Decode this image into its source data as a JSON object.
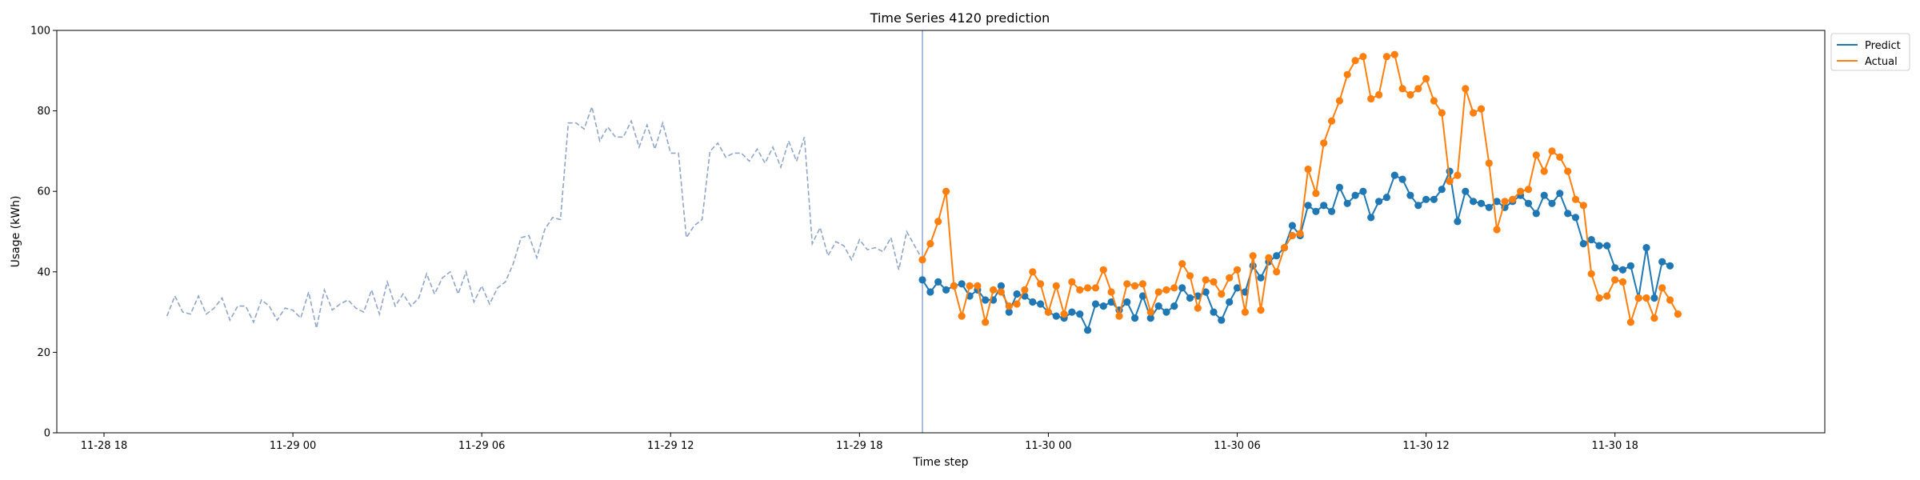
{
  "chart_data": {
    "type": "line",
    "title": "Time Series 4120 prediction",
    "xlabel": "Time step",
    "ylabel": "Usage (kWh)",
    "ylim": [
      0,
      100
    ],
    "xlim": [
      "2024-11-28 16:30",
      "2024-12-01 00:40"
    ],
    "x_ticks": [
      "11-28 18",
      "11-29 00",
      "11-29 06",
      "11-29 12",
      "11-29 18",
      "11-30 00",
      "11-30 06",
      "11-30 12",
      "11-30 18"
    ],
    "y_ticks": [
      0,
      20,
      40,
      60,
      80,
      100
    ],
    "grid": false,
    "legend_position": "top-right",
    "forecast_start": "2024-11-29 20:00",
    "interval_minutes": 15,
    "history": {
      "start": "2024-11-28 20:00",
      "values": [
        29,
        34,
        30,
        29.5,
        34,
        29.5,
        31,
        33.5,
        28,
        31.5,
        31.5,
        27.5,
        33,
        31.5,
        28,
        31,
        30.5,
        28.5,
        35,
        26,
        35.5,
        30.5,
        32,
        33,
        31,
        30,
        35.5,
        29.5,
        37.5,
        31.5,
        34.5,
        31.5,
        33.5,
        39.5,
        34.5,
        38.5,
        40,
        34.5,
        40,
        32.5,
        36.5,
        32,
        36,
        37.5,
        42,
        48.5,
        49,
        43.5,
        50.5,
        53.5,
        53,
        77,
        77,
        75.5,
        81,
        72.5,
        76,
        73.5,
        73.5,
        77.5,
        71,
        76.5,
        70.5,
        77,
        69.5,
        69.5,
        48.5,
        51.5,
        53,
        70,
        72,
        68.5,
        69.5,
        69.5,
        67.5,
        70.5,
        67,
        71,
        66,
        72.5,
        67.5,
        73.5,
        47,
        51,
        44,
        47.5,
        46.5,
        43,
        48,
        45.5,
        46,
        45,
        48.5,
        40.5,
        50,
        46.5,
        43
      ]
    },
    "series": [
      {
        "name": "Predict",
        "color": "#1f77b4",
        "start": "2024-11-29 20:00",
        "values": [
          38,
          35,
          37.5,
          35.5,
          36.5,
          37,
          34,
          35.5,
          33,
          33,
          36.5,
          30,
          34.5,
          34,
          32.5,
          32,
          30,
          29,
          28.5,
          30,
          29.5,
          25.5,
          32,
          31.5,
          32.5,
          30.5,
          32.5,
          28.5,
          34,
          28.5,
          31.5,
          30,
          31.5,
          36,
          33.5,
          34,
          35,
          30,
          28,
          32.5,
          36,
          35,
          41.5,
          38.5,
          42.5,
          44,
          46,
          51.5,
          49,
          56.5,
          55,
          56.5,
          55,
          61,
          57,
          59,
          60,
          53.5,
          57.5,
          58.5,
          64,
          63,
          59,
          56.5,
          58,
          58,
          60.5,
          65,
          52.5,
          60,
          57.5,
          57,
          56,
          57.5,
          56,
          57.5,
          59,
          57,
          54.5,
          59,
          57,
          59.5,
          54.5,
          53.5,
          47,
          48,
          46.5,
          46.5,
          41,
          40.5,
          41.5,
          33.5,
          46,
          33.5,
          42.5,
          41.5
        ]
      },
      {
        "name": "Actual",
        "color": "#ff7f0e",
        "start": "2024-11-29 20:00",
        "values": [
          43,
          47,
          52.5,
          60,
          36.5,
          29,
          36.5,
          36.5,
          27.5,
          35.5,
          35,
          31.5,
          32,
          35.5,
          40,
          37,
          30,
          36.5,
          29.5,
          37.5,
          35.5,
          36,
          36,
          40.5,
          35,
          29,
          37,
          36.5,
          37,
          30,
          35,
          35.5,
          36,
          42,
          39,
          31,
          38,
          37.5,
          34.5,
          38.5,
          40.5,
          30,
          44,
          30.5,
          43.5,
          40,
          46,
          49,
          49.5,
          65.5,
          59.5,
          72,
          77.5,
          82.5,
          89,
          92.5,
          93.5,
          83,
          84,
          93.5,
          94,
          85.5,
          84,
          85.5,
          88,
          82.5,
          79.5,
          62.5,
          64,
          85.5,
          79.5,
          80.5,
          67,
          50.5,
          57.5,
          58,
          60,
          60.5,
          69,
          65,
          70,
          68.5,
          65,
          58,
          56.5,
          39.5,
          33.5,
          34,
          38,
          37.5,
          27.5,
          33.5,
          33.5,
          28.5,
          36,
          33,
          29.5
        ]
      }
    ]
  }
}
